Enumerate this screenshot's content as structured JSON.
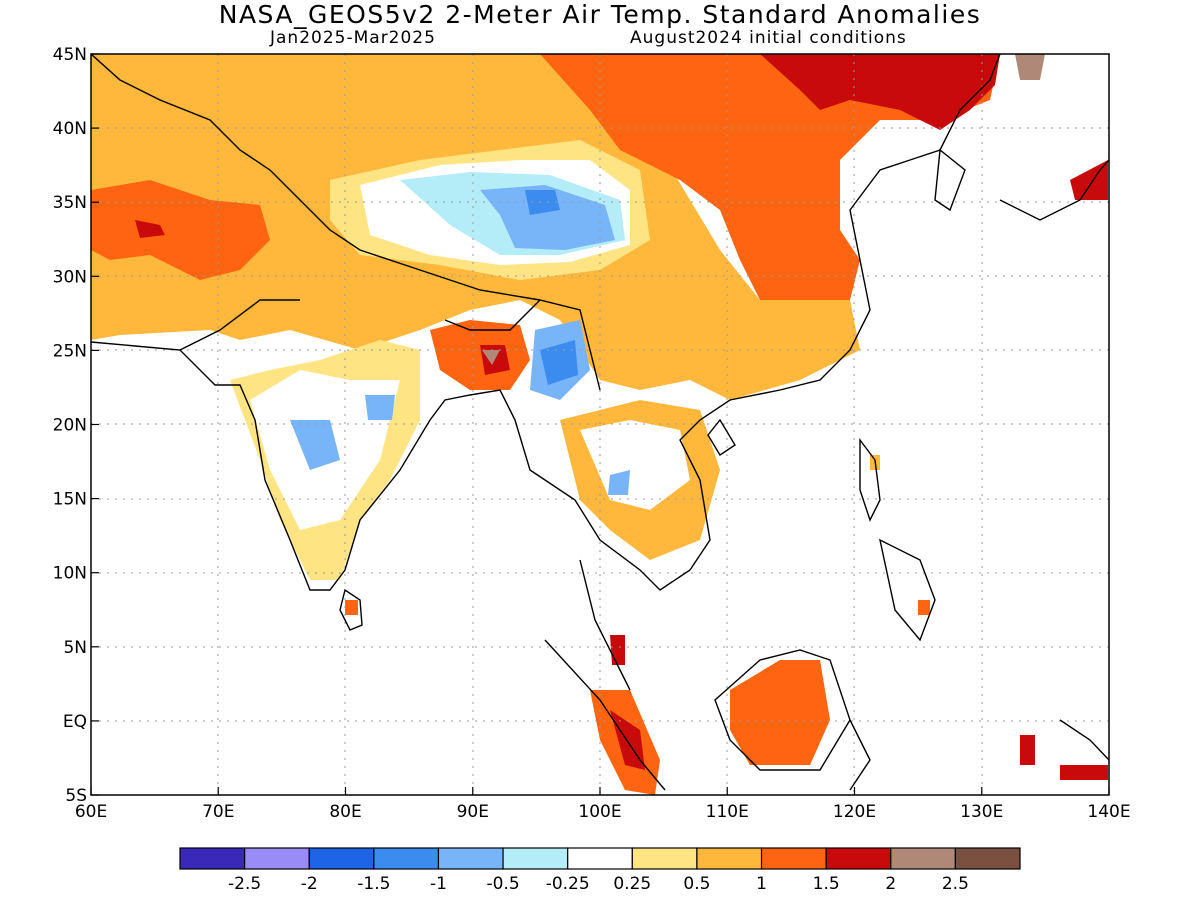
{
  "header": {
    "title": "NASA_GEOS5v2 2-Meter Air Temp. Standard Anomalies",
    "period": "Jan2025-Mar2025",
    "init": "August2024 initial conditions"
  },
  "map": {
    "lon_range": [
      60,
      140
    ],
    "lat_range": [
      -5,
      45
    ],
    "lon_ticks": [
      {
        "value": 60,
        "label": "60E"
      },
      {
        "value": 70,
        "label": "70E"
      },
      {
        "value": 80,
        "label": "80E"
      },
      {
        "value": 90,
        "label": "90E"
      },
      {
        "value": 100,
        "label": "100E"
      },
      {
        "value": 110,
        "label": "110E"
      },
      {
        "value": 120,
        "label": "120E"
      },
      {
        "value": 130,
        "label": "130E"
      },
      {
        "value": 140,
        "label": "140E"
      }
    ],
    "lat_ticks": [
      {
        "value": 45,
        "label": "45N"
      },
      {
        "value": 40,
        "label": "40N"
      },
      {
        "value": 35,
        "label": "35N"
      },
      {
        "value": 30,
        "label": "30N"
      },
      {
        "value": 25,
        "label": "25N"
      },
      {
        "value": 20,
        "label": "20N"
      },
      {
        "value": 15,
        "label": "15N"
      },
      {
        "value": 10,
        "label": "10N"
      },
      {
        "value": 5,
        "label": "5N"
      },
      {
        "value": 0,
        "label": "EQ"
      },
      {
        "value": -5,
        "label": "5S"
      }
    ]
  },
  "legend": {
    "colors": [
      "#3a28b8",
      "#9a8cf6",
      "#1e64e6",
      "#3c8cf0",
      "#78b4f8",
      "#b4ecf8",
      "#ffffff",
      "#ffe484",
      "#ffb83c",
      "#ff6410",
      "#c80a0a",
      "#b08878",
      "#7a5040"
    ],
    "labels": [
      "-2.5",
      "-2",
      "-1.5",
      "-1",
      "-0.5",
      "-0.25",
      "0.25",
      "0.5",
      "1",
      "1.5",
      "2",
      "2.5"
    ]
  }
}
